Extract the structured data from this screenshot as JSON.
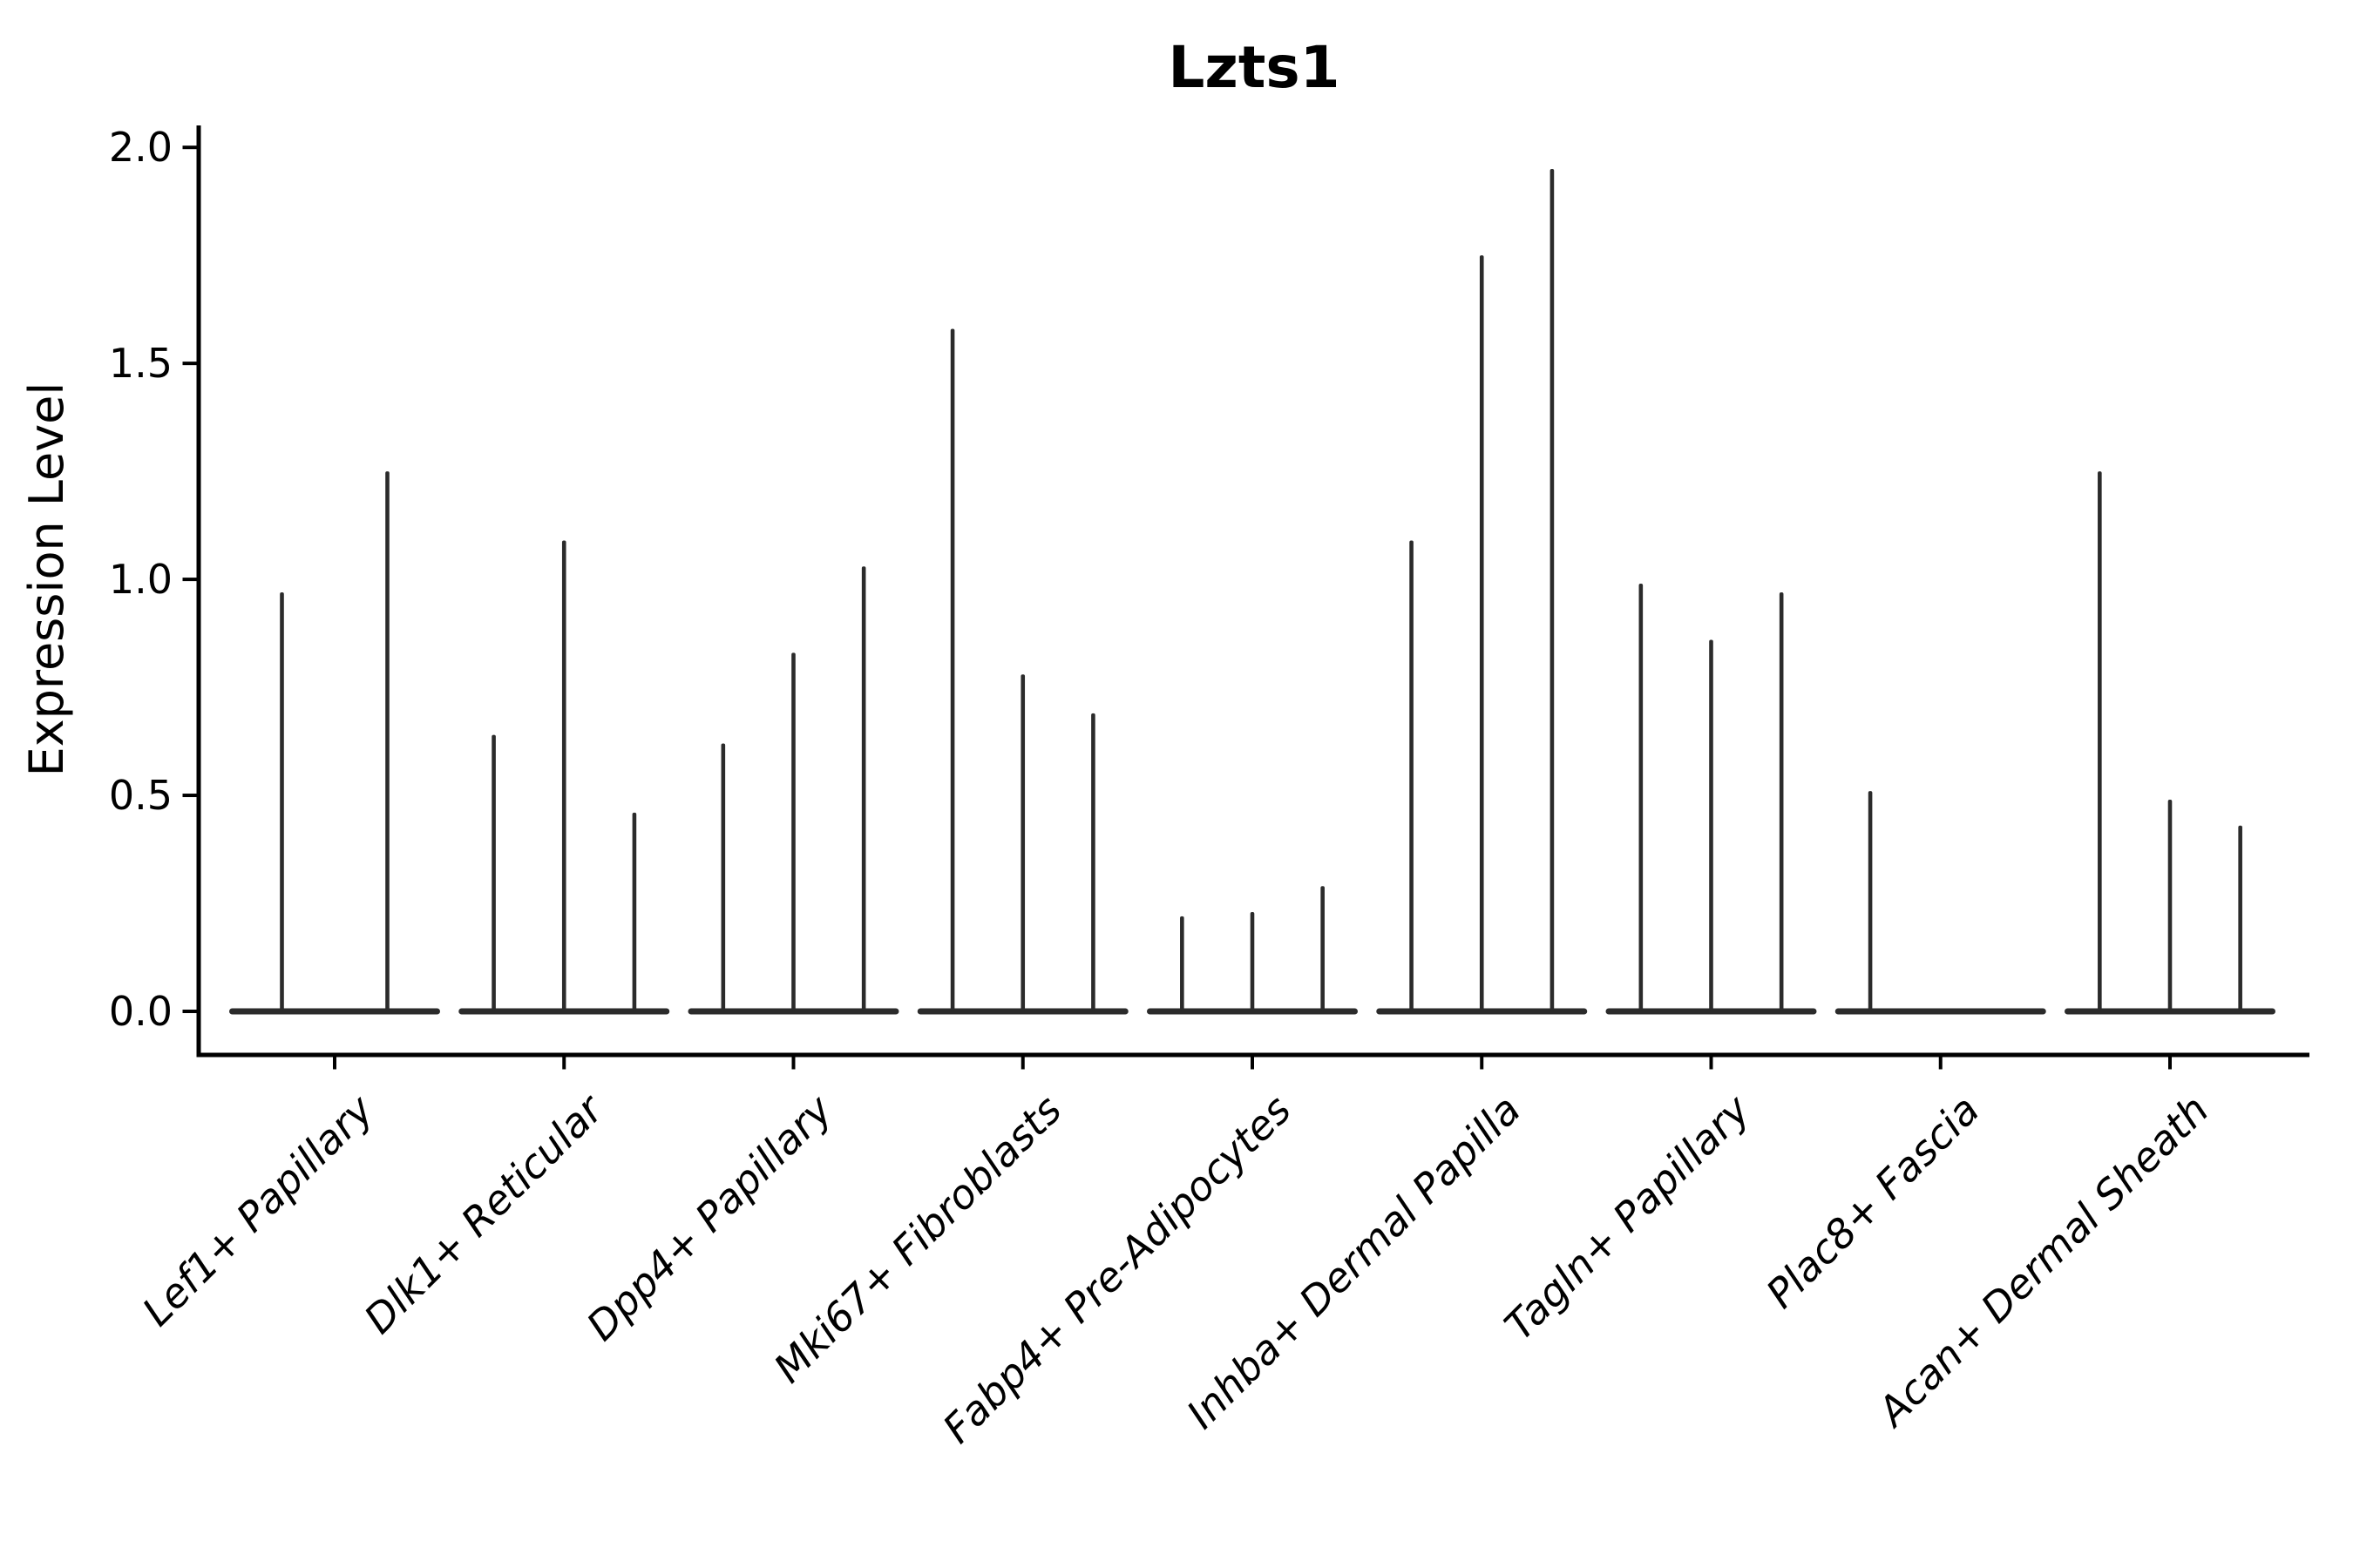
{
  "chart_data": {
    "type": "violin",
    "title": "Lzts1",
    "xlabel": "",
    "ylabel": "Expression Level",
    "yticks": [
      "0.0",
      "0.5",
      "1.0",
      "1.5",
      "2.0"
    ],
    "ylim": [
      -0.1,
      2.05
    ],
    "grid": false,
    "legend": "none",
    "style_note": "sparse-expression violin plot: each violin is wide at 0 (flat base band) with a hairline spike up to the max expression value",
    "categories": [
      "Lef1+ Papillary",
      "Dlk1+ Reticular",
      "Dpp4+ Papillary",
      "Mki67+ Fibroblasts",
      "Fabp4+ Pre-Adipocytes",
      "Inhba+ Dermal Papilla",
      "Tagln+ Papillary",
      "Plac8+ Fascia",
      "Acan+ Dermal Sheath"
    ],
    "groups": [
      {
        "category": "Lef1+ Papillary",
        "violin_max_values": [
          0.97,
          1.25
        ]
      },
      {
        "category": "Dlk1+ Reticular",
        "violin_max_values": [
          0.64,
          1.09,
          0.46
        ]
      },
      {
        "category": "Dpp4+ Papillary",
        "violin_max_values": [
          0.62,
          0.83,
          1.03
        ]
      },
      {
        "category": "Mki67+ Fibroblasts",
        "violin_max_values": [
          1.58,
          0.78,
          0.69
        ]
      },
      {
        "category": "Fabp4+ Pre-Adipocytes",
        "violin_max_values": [
          0.22,
          0.23,
          0.29
        ]
      },
      {
        "category": "Inhba+ Dermal Papilla",
        "violin_max_values": [
          1.09,
          1.75,
          1.95
        ]
      },
      {
        "category": "Tagln+ Papillary",
        "violin_max_values": [
          0.99,
          0.86,
          0.97
        ]
      },
      {
        "category": "Plac8+ Fascia",
        "violin_max_values": [
          0.51,
          0,
          0
        ]
      },
      {
        "category": "Acan+ Dermal Sheath",
        "violin_max_values": [
          1.25,
          0.49,
          0.43
        ]
      }
    ],
    "colors": {
      "violin": "#2b2b2b",
      "axis": "#000000",
      "text": "#000000",
      "background": "#ffffff"
    }
  }
}
